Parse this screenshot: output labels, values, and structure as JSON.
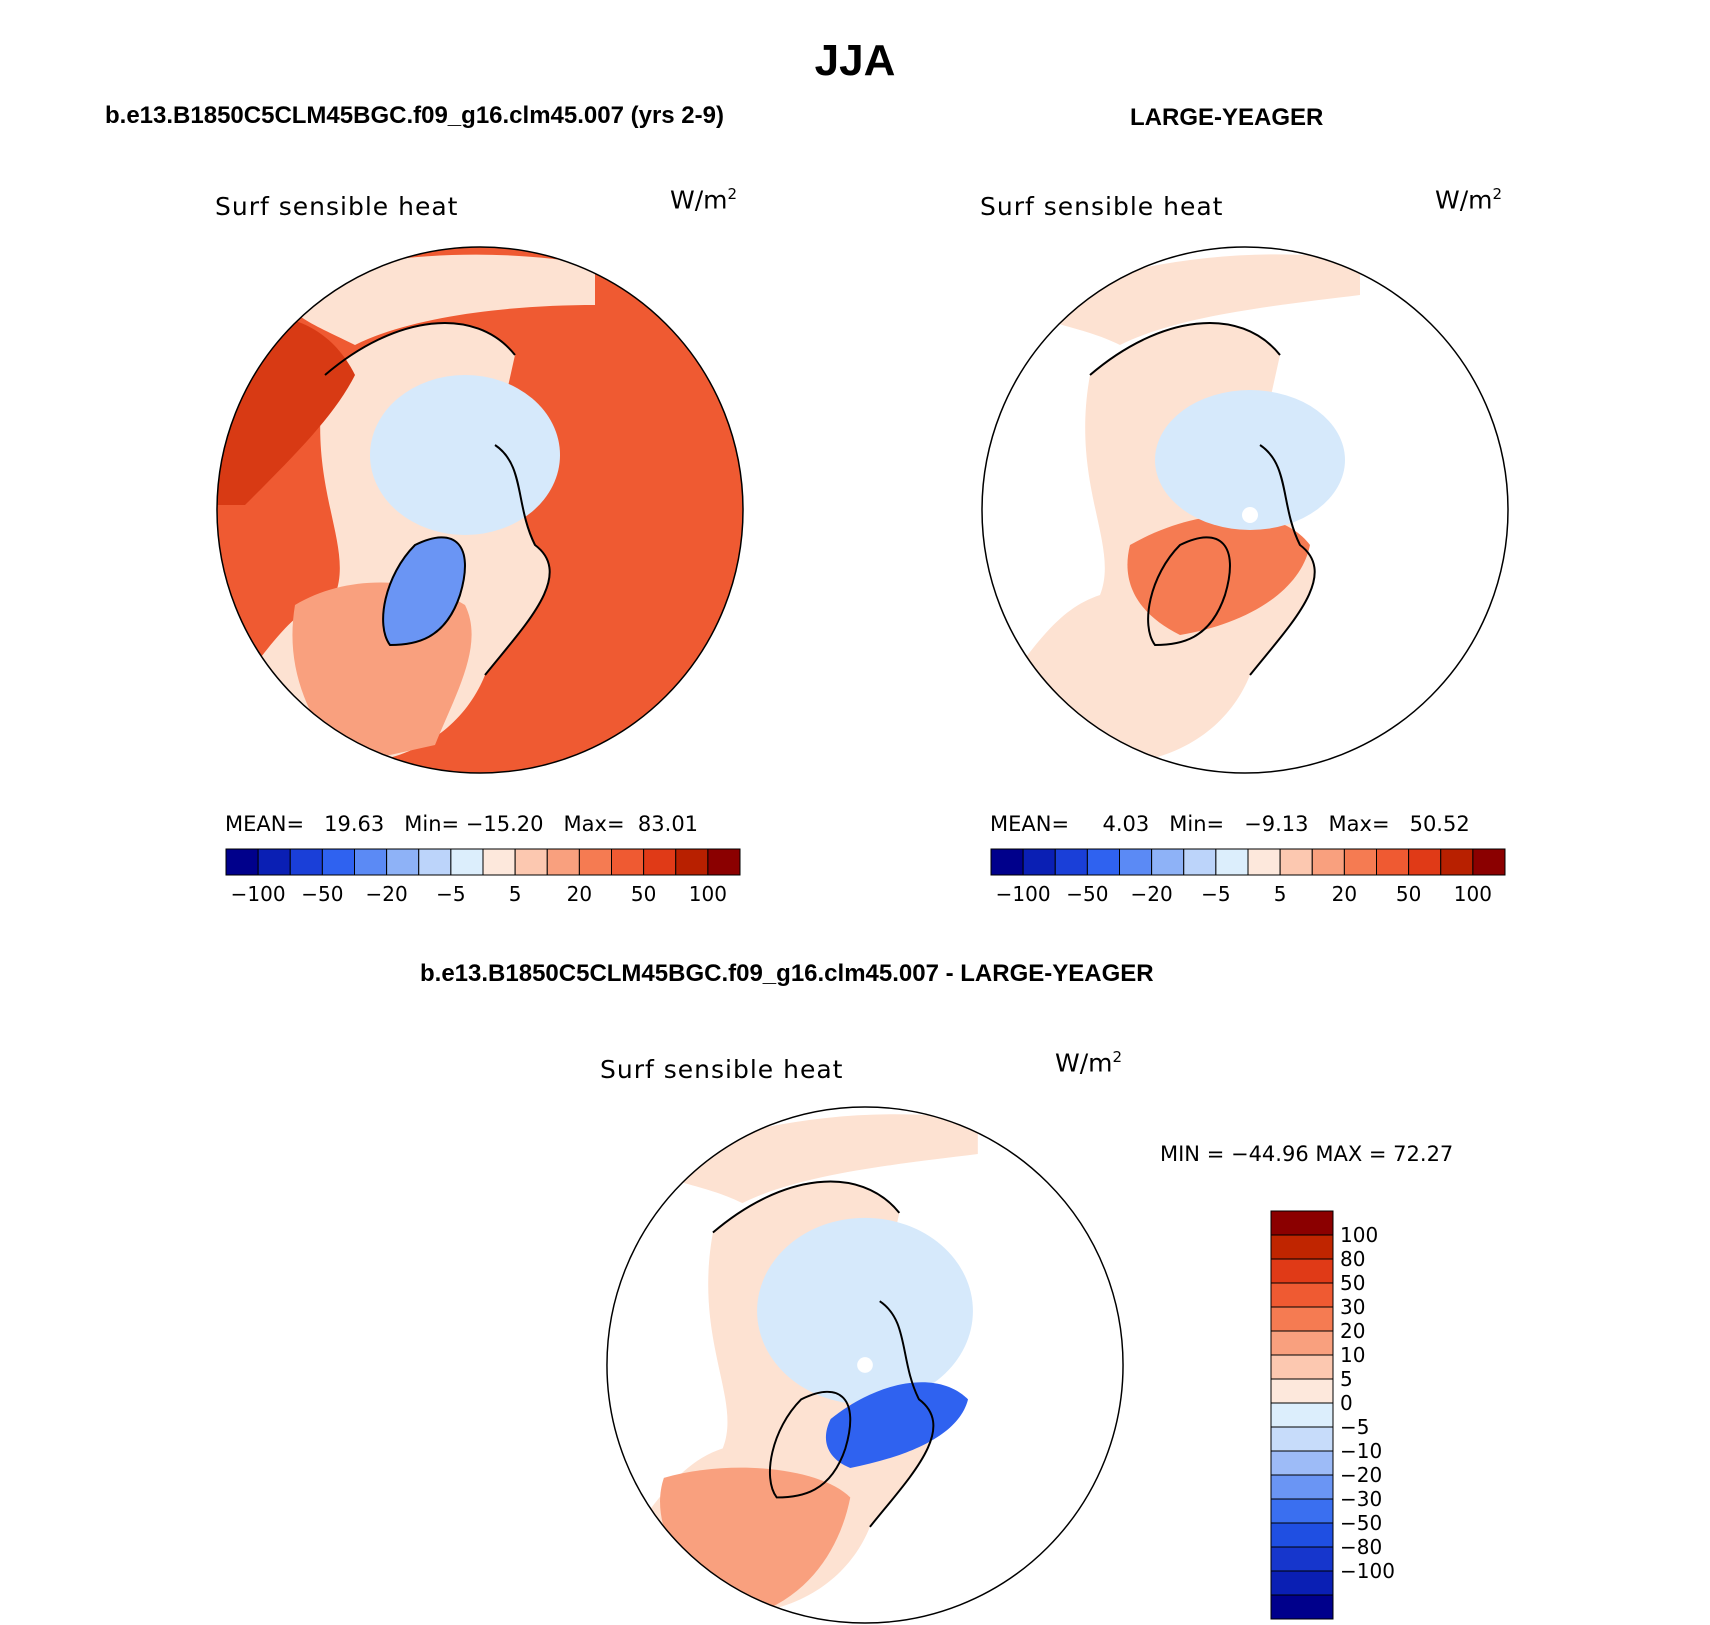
{
  "figure": {
    "title": "JJA",
    "variable": "Surf sensible heat",
    "units": "W/m",
    "units_sup": "2"
  },
  "panels": [
    {
      "title": "b.e13.B1850C5CLM45BGC.f09_g16.clm45.007 (yrs 2-9)",
      "stats": {
        "mean_label": "MEAN=",
        "mean": "19.63",
        "min_label": "Min=",
        "min": "−15.20",
        "max_label": "Max=",
        "max": "83.01"
      },
      "base_color": "#ef5a32"
    },
    {
      "title": "LARGE-YEAGER",
      "stats": {
        "mean_label": "MEAN=",
        "mean": "4.03",
        "min_label": "Min=",
        "min": "−9.13",
        "max_label": "Max=",
        "max": "50.52"
      },
      "base_color": "#fde2d2"
    }
  ],
  "diff_panel": {
    "title": "b.e13.B1850C5CLM45BGC.f09_g16.clm45.007 - LARGE-YEAGER",
    "stats_text": "MIN = −44.96 MAX =  72.27"
  },
  "colorbar_horizontal": {
    "colors": [
      "#00008b",
      "#0a1fb4",
      "#1a3fd8",
      "#2f62f0",
      "#5b8af5",
      "#8eb2f7",
      "#bcd4fa",
      "#dceefc",
      "#fde8dc",
      "#fcc8b0",
      "#f9a07e",
      "#f57b52",
      "#ef5a32",
      "#e03a17",
      "#b82000",
      "#8b0000"
    ],
    "tick_labels": [
      "−100",
      "−50",
      "−20",
      "−5",
      "5",
      "20",
      "50",
      "100"
    ]
  },
  "colorbar_vertical": {
    "colors": [
      "#00008b",
      "#0a1fb4",
      "#1636cc",
      "#1f4fe2",
      "#3a6ff0",
      "#6a95f4",
      "#9dbbf7",
      "#c7dcfa",
      "#dceefc",
      "#fde8dc",
      "#fcc8b0",
      "#f9a07e",
      "#f57b52",
      "#ef5a32",
      "#e03a17",
      "#c02500",
      "#8b0000"
    ],
    "tick_labels": [
      "100",
      "80",
      "50",
      "30",
      "20",
      "10",
      "5",
      "0",
      "−5",
      "−10",
      "−20",
      "−30",
      "−50",
      "−80",
      "−100"
    ]
  },
  "map_colors": {
    "ocean_light": "#fde2d2",
    "ice": "#d6e9fb",
    "land_white": "#ffffff",
    "mid_orange": "#f9a07e",
    "dark_red": "#d83a14",
    "mid_blue": "#6a95f4",
    "deep_blue": "#2f62f0",
    "coast": "#000000"
  }
}
